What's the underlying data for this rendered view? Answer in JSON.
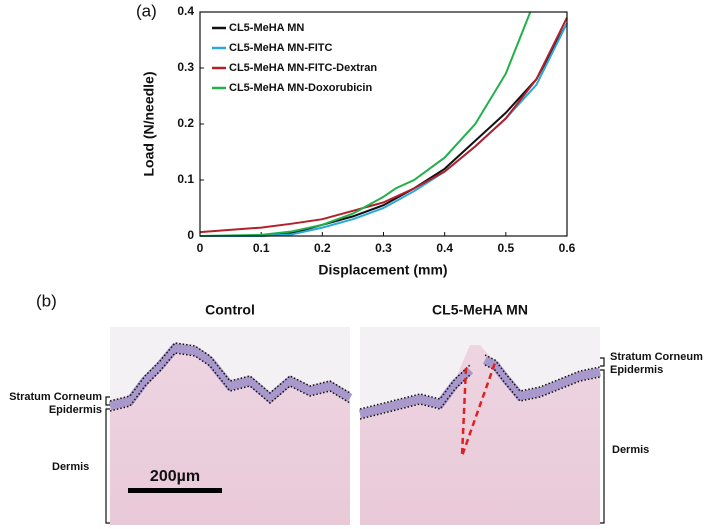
{
  "chart_data": {
    "type": "line",
    "panel_label": "(a)",
    "x_label": "Displacement (mm)",
    "y_label": "Load (N/needle)",
    "xlim": [
      0,
      0.6
    ],
    "xticks": [
      0,
      0.1,
      0.2,
      0.3,
      0.4,
      0.5,
      0.6
    ],
    "ylim": [
      0,
      0.4
    ],
    "yticks": [
      0,
      0.1,
      0.2,
      0.3,
      0.4
    ],
    "legend": "upper left",
    "series": [
      {
        "name": "CL5-MeHA MN",
        "color": "#111111",
        "x": [
          0,
          0.1,
          0.15,
          0.2,
          0.25,
          0.3,
          0.35,
          0.4,
          0.45,
          0.5,
          0.55,
          0.6
        ],
        "values": [
          0,
          0,
          0.005,
          0.02,
          0.035,
          0.055,
          0.085,
          0.12,
          0.17,
          0.22,
          0.28,
          0.38
        ]
      },
      {
        "name": "CL5-MeHA MN-FITC",
        "color": "#2aa8e0",
        "x": [
          0,
          0.1,
          0.15,
          0.2,
          0.25,
          0.3,
          0.35,
          0.4,
          0.45,
          0.5,
          0.55,
          0.6
        ],
        "values": [
          0,
          0,
          0.003,
          0.015,
          0.03,
          0.05,
          0.08,
          0.115,
          0.16,
          0.21,
          0.27,
          0.38
        ]
      },
      {
        "name": "CL5-MeHA MN-FITC-Dextran",
        "color": "#b3202a",
        "x": [
          0,
          0.1,
          0.15,
          0.2,
          0.25,
          0.3,
          0.35,
          0.4,
          0.45,
          0.5,
          0.55,
          0.6
        ],
        "values": [
          0.007,
          0.015,
          0.022,
          0.03,
          0.045,
          0.06,
          0.085,
          0.115,
          0.16,
          0.21,
          0.28,
          0.39
        ]
      },
      {
        "name": "CL5-MeHA MN-Doxorubicin",
        "color": "#22b04b",
        "x": [
          0,
          0.1,
          0.15,
          0.2,
          0.25,
          0.3,
          0.32,
          0.35,
          0.4,
          0.45,
          0.5,
          0.54
        ],
        "values": [
          0,
          0.002,
          0.008,
          0.02,
          0.04,
          0.07,
          0.085,
          0.1,
          0.14,
          0.2,
          0.29,
          0.4
        ]
      }
    ]
  },
  "panel_b": {
    "panel_label": "(b)",
    "title_left": "Control",
    "title_right": "CL5-MeHA MN",
    "left_labels": [
      "Stratum Corneum",
      "Epidermis",
      "Dermis"
    ],
    "right_labels": [
      "Stratum Corneum",
      "Epidermis",
      "Dermis"
    ],
    "scale_bar": "200µm"
  }
}
